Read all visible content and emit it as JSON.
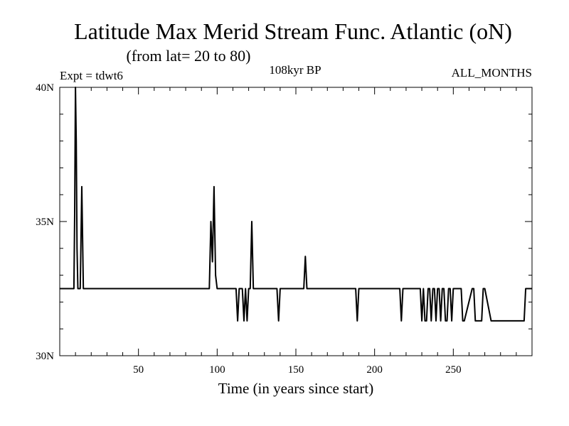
{
  "chart_data": {
    "type": "line",
    "title": "Latitude Max Merid Stream Func. Atlantic (oN)",
    "subtitle": "(from lat= 20 to 80)",
    "annotations": {
      "experiment": "Expt = tdwt6",
      "period": "108kyr BP",
      "months": "ALL_MONTHS"
    },
    "xlabel": "Time (in years since start)",
    "ylabel": "",
    "xlim": [
      0,
      300
    ],
    "ylim": [
      30,
      40
    ],
    "x_ticks": [
      50,
      100,
      150,
      200,
      250
    ],
    "x_tick_labels": [
      "50",
      "100",
      "150",
      "200",
      "250"
    ],
    "y_ticks": [
      30,
      35,
      40
    ],
    "y_tick_labels": [
      "30N",
      "35N",
      "40N"
    ],
    "grid": false,
    "series": [
      {
        "x": [
          0,
          9,
          9.5,
          10,
          10.5,
          11,
          11.5,
          12,
          13,
          14,
          15,
          16,
          17,
          50,
          95,
          96,
          97,
          98,
          99,
          100,
          112,
          113,
          114,
          115,
          116,
          117,
          118,
          119,
          120,
          121,
          122,
          123,
          124,
          125,
          138,
          139,
          140,
          155,
          156,
          157,
          188,
          189,
          190,
          216,
          217,
          218,
          229,
          230,
          231,
          232,
          233,
          234,
          235,
          236,
          237,
          238,
          239,
          240,
          241,
          242,
          243,
          244,
          245,
          246,
          247,
          248,
          249,
          250,
          255,
          256,
          257,
          262,
          263,
          264,
          268,
          269,
          270,
          274,
          275,
          276,
          280,
          285,
          295,
          296,
          300
        ],
        "y": [
          32.5,
          32.5,
          35.3,
          40.0,
          38.0,
          34.0,
          32.5,
          32.5,
          32.5,
          36.3,
          32.5,
          32.5,
          32.5,
          32.5,
          32.5,
          35.0,
          33.5,
          36.3,
          33.0,
          32.5,
          32.5,
          31.3,
          32.5,
          32.5,
          32.5,
          31.3,
          32.5,
          31.3,
          32.5,
          32.5,
          35.0,
          32.5,
          32.5,
          32.5,
          32.5,
          31.3,
          32.5,
          32.5,
          33.7,
          32.5,
          32.5,
          31.3,
          32.5,
          32.5,
          31.3,
          32.5,
          32.5,
          31.3,
          32.5,
          31.3,
          31.3,
          32.5,
          32.5,
          31.3,
          32.5,
          32.5,
          31.3,
          32.5,
          32.5,
          31.3,
          32.5,
          32.5,
          31.3,
          31.3,
          32.5,
          32.5,
          31.3,
          32.5,
          32.5,
          31.3,
          31.3,
          32.5,
          32.5,
          31.3,
          31.3,
          32.5,
          32.5,
          31.3,
          31.3,
          31.3,
          31.3,
          31.3,
          31.3,
          32.5,
          32.5
        ]
      }
    ]
  }
}
